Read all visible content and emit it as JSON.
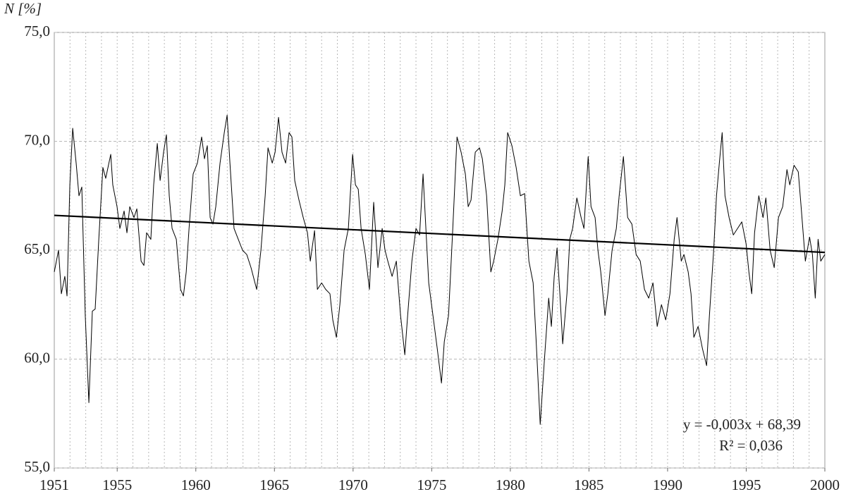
{
  "chart_data": {
    "type": "line",
    "ylabel": "N [%]",
    "xlim": [
      1951,
      2000
    ],
    "xticks": [
      1951,
      1955,
      1960,
      1965,
      1970,
      1975,
      1980,
      1985,
      1990,
      1995,
      2000
    ],
    "ylim": [
      55,
      75
    ],
    "yticks": [
      {
        "value": 55,
        "label": "55,0"
      },
      {
        "value": 60,
        "label": "60,0"
      },
      {
        "value": 65,
        "label": "65,0"
      },
      {
        "value": 70,
        "label": "70,0"
      },
      {
        "value": 75,
        "label": "75,0"
      }
    ],
    "grid": true,
    "x_grid_step": 1,
    "annotations": [
      "y = -0,003x + 68,39",
      "R² = 0,036"
    ],
    "series": [
      {
        "color": "#000000",
        "width": 1,
        "x": [
          1951.0,
          1951.27,
          1951.45,
          1951.67,
          1951.81,
          1951.99,
          1952.17,
          1952.39,
          1952.57,
          1952.75,
          1952.97,
          1953.2,
          1953.42,
          1953.6,
          1953.83,
          1954.09,
          1954.27,
          1954.59,
          1954.72,
          1954.99,
          1955.17,
          1955.44,
          1955.62,
          1955.8,
          1956.07,
          1956.25,
          1956.52,
          1956.7,
          1956.87,
          1957.14,
          1957.32,
          1957.55,
          1957.73,
          1957.95,
          1958.13,
          1958.31,
          1958.49,
          1958.76,
          1959.03,
          1959.21,
          1959.39,
          1959.57,
          1959.83,
          1960.1,
          1960.37,
          1960.55,
          1960.73,
          1960.91,
          1961.09,
          1961.27,
          1961.54,
          1961.81,
          1961.99,
          1962.17,
          1962.43,
          1962.7,
          1962.97,
          1963.24,
          1963.51,
          1963.87,
          1964.14,
          1964.41,
          1964.59,
          1964.86,
          1965.04,
          1965.26,
          1965.48,
          1965.71,
          1965.93,
          1966.11,
          1966.29,
          1966.56,
          1966.83,
          1967.1,
          1967.28,
          1967.55,
          1967.73,
          1968.0,
          1968.26,
          1968.53,
          1968.71,
          1968.94,
          1969.16,
          1969.43,
          1969.7,
          1969.97,
          1970.15,
          1970.33,
          1970.51,
          1970.78,
          1971.04,
          1971.31,
          1971.58,
          1971.85,
          1972.03,
          1972.21,
          1972.48,
          1972.75,
          1973.02,
          1973.29,
          1973.47,
          1973.74,
          1974.0,
          1974.23,
          1974.45,
          1974.63,
          1974.81,
          1975.08,
          1975.35,
          1975.62,
          1975.8,
          1976.07,
          1976.34,
          1976.61,
          1976.87,
          1977.14,
          1977.32,
          1977.5,
          1977.77,
          1978.04,
          1978.22,
          1978.49,
          1978.76,
          1978.94,
          1979.21,
          1979.48,
          1979.65,
          1979.83,
          1980.1,
          1980.37,
          1980.64,
          1980.91,
          1981.18,
          1981.45,
          1981.63,
          1981.9,
          1982.17,
          1982.44,
          1982.61,
          1982.79,
          1982.97,
          1983.15,
          1983.33,
          1983.6,
          1983.78,
          1983.96,
          1984.23,
          1984.5,
          1984.68,
          1984.95,
          1985.13,
          1985.39,
          1985.57,
          1985.75,
          1986.02,
          1986.2,
          1986.47,
          1986.74,
          1986.92,
          1987.19,
          1987.46,
          1987.73,
          1988.0,
          1988.26,
          1988.53,
          1988.8,
          1989.07,
          1989.34,
          1989.61,
          1989.88,
          1990.15,
          1990.42,
          1990.6,
          1990.87,
          1991.04,
          1991.31,
          1991.49,
          1991.67,
          1991.94,
          1992.21,
          1992.48,
          1992.66,
          1992.93,
          1993.11,
          1993.29,
          1993.47,
          1993.65,
          1993.91,
          1994.18,
          1994.45,
          1994.72,
          1994.99,
          1995.17,
          1995.35,
          1995.53,
          1995.8,
          1996.07,
          1996.25,
          1996.52,
          1996.78,
          1997.05,
          1997.32,
          1997.59,
          1997.77,
          1998.04,
          1998.31,
          1998.49,
          1998.76,
          1999.03,
          1999.21,
          1999.39,
          1999.57,
          1999.74,
          2000.0
        ],
        "values": [
          64.0,
          65.0,
          63.0,
          63.8,
          62.9,
          68.0,
          70.6,
          69.0,
          67.5,
          67.9,
          62.0,
          58.0,
          62.2,
          62.3,
          65.5,
          68.8,
          68.3,
          69.4,
          68.0,
          67.0,
          66.0,
          66.8,
          65.8,
          67.0,
          66.5,
          66.9,
          64.5,
          64.3,
          65.8,
          65.5,
          68.0,
          69.9,
          68.2,
          69.5,
          70.3,
          67.5,
          66.0,
          65.5,
          63.2,
          62.9,
          64.0,
          66.0,
          68.5,
          69.0,
          70.2,
          69.2,
          69.8,
          66.5,
          66.2,
          67.0,
          69.0,
          70.4,
          71.2,
          69.0,
          66.0,
          65.5,
          65.0,
          64.8,
          64.2,
          63.2,
          65.0,
          67.5,
          69.7,
          69.0,
          69.5,
          71.1,
          69.5,
          69.0,
          70.4,
          70.2,
          68.2,
          67.3,
          66.5,
          65.8,
          64.5,
          65.9,
          63.2,
          63.5,
          63.2,
          63.0,
          61.8,
          61.0,
          62.5,
          65.0,
          66.0,
          69.4,
          68.0,
          67.8,
          66.0,
          64.8,
          63.2,
          67.2,
          64.2,
          66.0,
          65.0,
          64.5,
          63.8,
          64.5,
          62.0,
          60.2,
          62.0,
          64.5,
          66.0,
          65.7,
          68.5,
          66.0,
          63.5,
          62.0,
          60.5,
          58.9,
          60.8,
          62.0,
          66.0,
          70.2,
          69.5,
          68.5,
          67.0,
          67.3,
          69.5,
          69.7,
          69.2,
          67.5,
          64.0,
          64.5,
          65.5,
          66.8,
          68.0,
          70.4,
          69.8,
          68.8,
          67.5,
          67.6,
          64.5,
          63.5,
          61.0,
          57.0,
          60.0,
          62.8,
          61.5,
          63.8,
          65.1,
          63.0,
          60.7,
          63.0,
          65.5,
          66.0,
          67.4,
          66.5,
          66.0,
          69.3,
          67.0,
          66.5,
          65.0,
          64.0,
          62.0,
          63.0,
          65.0,
          66.0,
          67.5,
          69.3,
          66.5,
          66.2,
          64.8,
          64.5,
          63.2,
          62.8,
          63.5,
          61.5,
          62.5,
          61.8,
          63.0,
          65.5,
          66.5,
          64.5,
          64.8,
          64.0,
          63.0,
          61.0,
          61.5,
          60.5,
          59.7,
          62.0,
          65.0,
          67.5,
          69.0,
          70.4,
          67.5,
          66.5,
          65.7,
          66.0,
          66.3,
          65.3,
          64.0,
          63.0,
          65.8,
          67.5,
          66.5,
          67.4,
          65.0,
          64.2,
          66.5,
          67.0,
          68.7,
          68.0,
          68.9,
          68.6,
          67.0,
          64.5,
          65.6,
          64.8,
          62.8,
          65.5,
          64.5,
          64.8
        ]
      },
      {
        "color": "#000000",
        "width": 2.2,
        "x": [
          1951,
          2000
        ],
        "values": [
          66.6,
          64.9
        ]
      }
    ]
  }
}
